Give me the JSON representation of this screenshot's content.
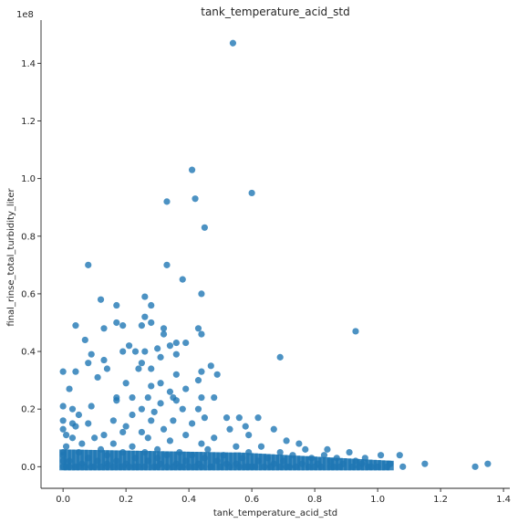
{
  "chart_data": {
    "type": "scatter",
    "title": "tank_temperature_acid_std",
    "xlabel": "tank_temperature_acid_std",
    "ylabel": "final_rinse_total_turbidity_liter",
    "y_offset_text": "1e8",
    "xlim": [
      -0.07,
      1.42
    ],
    "ylim": [
      -0.075,
      1.55
    ],
    "y_unit_multiplier": 100000000,
    "xticks": [
      0.0,
      0.2,
      0.4,
      0.6,
      0.8,
      1.0,
      1.2,
      1.4
    ],
    "xtick_labels": [
      "0.0",
      "0.2",
      "0.4",
      "0.6",
      "0.8",
      "1.0",
      "1.2",
      "1.4"
    ],
    "yticks": [
      0.0,
      0.2,
      0.4,
      0.6,
      0.8,
      1.0,
      1.2,
      1.4
    ],
    "ytick_labels": [
      "0.0",
      "0.2",
      "0.4",
      "0.6",
      "0.8",
      "1.0",
      "1.2",
      "1.4"
    ],
    "grid": false,
    "color": "#1f77b4",
    "points": [
      [
        0.54,
        1.47
      ],
      [
        0.41,
        1.03
      ],
      [
        0.33,
        0.92
      ],
      [
        0.42,
        0.93
      ],
      [
        0.6,
        0.95
      ],
      [
        0.45,
        0.83
      ],
      [
        0.08,
        0.7
      ],
      [
        0.33,
        0.7
      ],
      [
        0.38,
        0.65
      ],
      [
        0.44,
        0.6
      ],
      [
        0.26,
        0.59
      ],
      [
        0.12,
        0.58
      ],
      [
        0.17,
        0.56
      ],
      [
        0.28,
        0.56
      ],
      [
        0.26,
        0.52
      ],
      [
        0.28,
        0.5
      ],
      [
        0.32,
        0.48
      ],
      [
        0.19,
        0.49
      ],
      [
        0.04,
        0.49
      ],
      [
        0.17,
        0.5
      ],
      [
        0.25,
        0.49
      ],
      [
        0.43,
        0.48
      ],
      [
        0.13,
        0.48
      ],
      [
        0.93,
        0.47
      ],
      [
        0.44,
        0.46
      ],
      [
        0.32,
        0.46
      ],
      [
        0.07,
        0.44
      ],
      [
        0.36,
        0.43
      ],
      [
        0.39,
        0.43
      ],
      [
        0.34,
        0.42
      ],
      [
        0.21,
        0.42
      ],
      [
        0.23,
        0.4
      ],
      [
        0.26,
        0.4
      ],
      [
        0.19,
        0.4
      ],
      [
        0.3,
        0.41
      ],
      [
        0.09,
        0.39
      ],
      [
        0.36,
        0.39
      ],
      [
        0.31,
        0.38
      ],
      [
        0.69,
        0.38
      ],
      [
        0.13,
        0.37
      ],
      [
        0.25,
        0.36
      ],
      [
        0.47,
        0.35
      ],
      [
        0.08,
        0.36
      ],
      [
        0.14,
        0.34
      ],
      [
        0.28,
        0.34
      ],
      [
        0.24,
        0.34
      ],
      [
        0.0,
        0.33
      ],
      [
        0.04,
        0.33
      ],
      [
        0.44,
        0.33
      ],
      [
        0.36,
        0.32
      ],
      [
        0.49,
        0.32
      ],
      [
        0.11,
        0.31
      ],
      [
        0.43,
        0.3
      ],
      [
        0.2,
        0.29
      ],
      [
        0.31,
        0.29
      ],
      [
        0.02,
        0.27
      ],
      [
        0.39,
        0.27
      ],
      [
        0.28,
        0.28
      ],
      [
        0.34,
        0.26
      ],
      [
        0.35,
        0.24
      ],
      [
        0.17,
        0.24
      ],
      [
        0.22,
        0.24
      ],
      [
        0.48,
        0.24
      ],
      [
        0.44,
        0.24
      ],
      [
        0.31,
        0.22
      ],
      [
        0.36,
        0.23
      ],
      [
        0.17,
        0.23
      ],
      [
        0.27,
        0.24
      ],
      [
        0.0,
        0.21
      ],
      [
        0.09,
        0.21
      ],
      [
        0.03,
        0.2
      ],
      [
        0.38,
        0.2
      ],
      [
        0.43,
        0.2
      ],
      [
        0.25,
        0.2
      ],
      [
        0.29,
        0.19
      ],
      [
        0.05,
        0.18
      ],
      [
        0.56,
        0.17
      ],
      [
        0.45,
        0.17
      ],
      [
        0.62,
        0.17
      ],
      [
        0.22,
        0.18
      ],
      [
        0.0,
        0.16
      ],
      [
        0.35,
        0.16
      ],
      [
        0.52,
        0.17
      ],
      [
        0.16,
        0.16
      ],
      [
        0.28,
        0.16
      ],
      [
        0.08,
        0.15
      ],
      [
        0.03,
        0.15
      ],
      [
        0.41,
        0.15
      ],
      [
        0.58,
        0.14
      ],
      [
        0.04,
        0.14
      ],
      [
        0.67,
        0.13
      ],
      [
        0.2,
        0.14
      ],
      [
        0.0,
        0.13
      ],
      [
        0.32,
        0.13
      ],
      [
        0.53,
        0.13
      ],
      [
        0.25,
        0.12
      ],
      [
        0.01,
        0.11
      ],
      [
        0.19,
        0.12
      ],
      [
        0.39,
        0.11
      ],
      [
        0.13,
        0.11
      ],
      [
        0.59,
        0.11
      ],
      [
        0.03,
        0.1
      ],
      [
        0.48,
        0.1
      ],
      [
        0.27,
        0.1
      ],
      [
        0.1,
        0.1
      ],
      [
        0.71,
        0.09
      ],
      [
        0.34,
        0.09
      ],
      [
        0.06,
        0.08
      ],
      [
        0.75,
        0.08
      ],
      [
        0.16,
        0.08
      ],
      [
        0.44,
        0.08
      ],
      [
        0.63,
        0.07
      ],
      [
        0.22,
        0.07
      ],
      [
        0.01,
        0.07
      ],
      [
        0.84,
        0.06
      ],
      [
        0.55,
        0.07
      ],
      [
        0.3,
        0.06
      ],
      [
        0.77,
        0.06
      ],
      [
        0.12,
        0.06
      ],
      [
        0.46,
        0.06
      ],
      [
        0.0,
        0.05
      ],
      [
        0.37,
        0.05
      ],
      [
        0.69,
        0.05
      ],
      [
        0.19,
        0.05
      ],
      [
        0.91,
        0.05
      ],
      [
        0.05,
        0.05
      ],
      [
        0.59,
        0.05
      ],
      [
        0.26,
        0.05
      ],
      [
        0.83,
        0.04
      ],
      [
        0.41,
        0.04
      ],
      [
        1.01,
        0.04
      ],
      [
        1.07,
        0.04
      ],
      [
        0.14,
        0.04
      ],
      [
        0.51,
        0.04
      ],
      [
        0.73,
        0.04
      ],
      [
        0.0,
        0.04
      ],
      [
        0.33,
        0.04
      ],
      [
        0.96,
        0.03
      ],
      [
        0.65,
        0.03
      ],
      [
        0.23,
        0.03
      ],
      [
        0.87,
        0.03
      ],
      [
        0.08,
        0.03
      ],
      [
        0.45,
        0.03
      ],
      [
        0.79,
        0.03
      ],
      [
        0.3,
        0.03
      ],
      [
        0.57,
        0.03
      ],
      [
        0.02,
        0.02
      ],
      [
        0.17,
        0.02
      ],
      [
        0.93,
        0.02
      ],
      [
        0.39,
        0.02
      ],
      [
        0.7,
        0.02
      ],
      [
        0.11,
        0.02
      ],
      [
        0.49,
        0.02
      ],
      [
        0.85,
        0.02
      ],
      [
        0.27,
        0.02
      ],
      [
        0.62,
        0.02
      ],
      [
        0.0,
        0.02
      ],
      [
        1.04,
        0.01
      ],
      [
        0.36,
        0.01
      ],
      [
        0.76,
        0.01
      ],
      [
        0.2,
        0.01
      ],
      [
        0.55,
        0.01
      ],
      [
        0.95,
        0.01
      ],
      [
        0.06,
        0.01
      ],
      [
        0.43,
        0.01
      ],
      [
        0.67,
        0.01
      ],
      [
        0.31,
        0.01
      ],
      [
        0.89,
        0.01
      ],
      [
        0.14,
        0.01
      ],
      [
        0.52,
        0.01
      ],
      [
        0.81,
        0.01
      ],
      [
        1.0,
        0.0
      ],
      [
        0.0,
        0.0
      ],
      [
        0.24,
        0.0
      ],
      [
        0.6,
        0.0
      ],
      [
        0.4,
        0.0
      ],
      [
        0.72,
        0.0
      ],
      [
        0.09,
        0.0
      ],
      [
        0.47,
        0.0
      ],
      [
        0.86,
        0.0
      ],
      [
        0.29,
        0.0
      ],
      [
        1.15,
        0.01
      ],
      [
        1.31,
        0.0
      ],
      [
        1.35,
        0.01
      ],
      [
        1.08,
        0.0
      ],
      [
        0.98,
        0.0
      ],
      [
        0.16,
        0.0
      ],
      [
        0.35,
        0.0
      ],
      [
        0.64,
        0.0
      ],
      [
        0.78,
        0.0
      ],
      [
        0.53,
        0.0
      ],
      [
        0.04,
        0.0
      ],
      [
        0.21,
        0.0
      ],
      [
        0.92,
        0.0
      ],
      [
        0.44,
        0.0
      ],
      [
        0.69,
        0.0
      ],
      [
        0.12,
        0.0
      ],
      [
        0.82,
        0.0
      ],
      [
        0.58,
        0.0
      ],
      [
        0.26,
        0.0
      ],
      [
        0.38,
        0.0
      ],
      [
        0.02,
        0.0
      ],
      [
        0.97,
        0.0
      ],
      [
        0.74,
        0.0
      ],
      [
        0.5,
        0.0
      ],
      [
        0.18,
        0.0
      ],
      [
        0.33,
        0.0
      ],
      [
        0.88,
        0.0
      ],
      [
        0.07,
        0.0
      ],
      [
        0.61,
        0.0
      ],
      [
        1.03,
        0.0
      ],
      [
        0.42,
        0.0
      ],
      [
        0.23,
        0.0
      ],
      [
        0.8,
        0.0
      ],
      [
        0.1,
        0.0
      ],
      [
        0.66,
        0.0
      ],
      [
        0.56,
        0.0
      ],
      [
        0.3,
        0.0
      ],
      [
        0.94,
        0.0
      ],
      [
        0.01,
        0.0
      ],
      [
        0.47,
        0.0
      ],
      [
        0.14,
        0.0
      ],
      [
        0.71,
        0.0
      ],
      [
        0.37,
        0.0
      ],
      [
        0.85,
        0.0
      ],
      [
        0.19,
        0.0
      ],
      [
        0.59,
        0.0
      ],
      [
        0.05,
        0.0
      ]
    ]
  }
}
